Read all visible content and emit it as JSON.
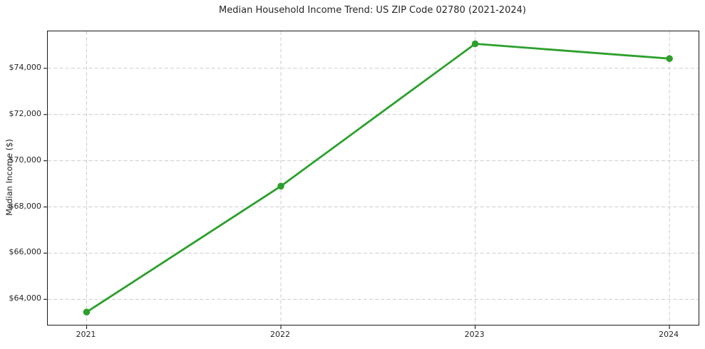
{
  "chart_data": {
    "type": "line",
    "title": "Median Household Income Trend: US ZIP Code 02780 (2021-2024)",
    "xlabel": "",
    "ylabel": "Median Income ($)",
    "x": [
      2021,
      2022,
      2023,
      2024
    ],
    "xtick_labels": [
      "2021",
      "2022",
      "2023",
      "2024"
    ],
    "series": [
      {
        "name": "Median Household Income",
        "values": [
          63450,
          68900,
          75060,
          74420
        ]
      }
    ],
    "ytick_values": [
      64000,
      66000,
      68000,
      70000,
      72000,
      74000
    ],
    "ytick_labels": [
      "$64,000",
      "$66,000",
      "$68,000",
      "$70,000",
      "$72,000",
      "$74,000"
    ],
    "xlim": [
      2020.8,
      2024.15
    ],
    "ylim": [
      62900,
      75600
    ],
    "grid": true,
    "grid_style": "dashed",
    "legend": "none",
    "colors": {
      "line": "#2ca02c",
      "marker": "#2ca02c",
      "gridline": "#cccccc",
      "spine": "#1a1a1a",
      "text": "#262626",
      "background": "#ffffff"
    },
    "marker": "circle",
    "marker_radius": 4.8,
    "line_width": 2.8
  }
}
